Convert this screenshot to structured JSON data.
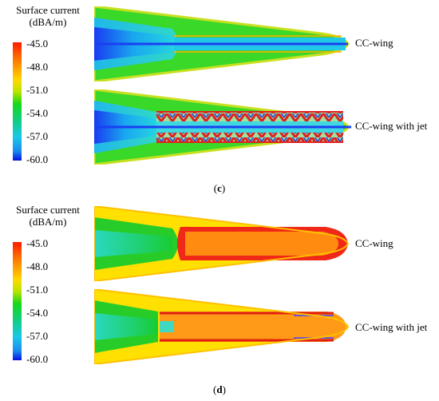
{
  "colorbar": {
    "title_line1": "Surface current",
    "title_line2": "(dBA/m)",
    "ticks": [
      "-45.0",
      "-48.0",
      "-51.0",
      "-54.0",
      "-57.0",
      "-60.0"
    ]
  },
  "panels": [
    {
      "label": "c",
      "wings": [
        {
          "label": "CC-wing"
        },
        {
          "label": "CC-wing with jet"
        }
      ]
    },
    {
      "label": "d",
      "wings": [
        {
          "label": "CC-wing"
        },
        {
          "label": "CC-wing with jet"
        }
      ]
    }
  ]
}
